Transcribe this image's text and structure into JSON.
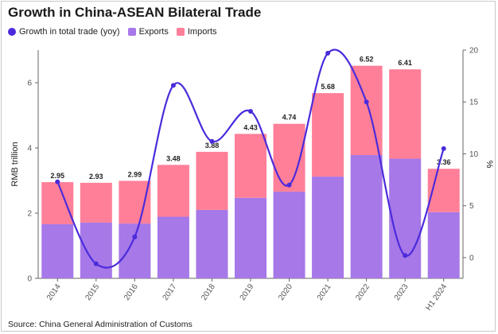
{
  "title": "Growth in China-ASEAN Bilateral Trade",
  "source": "Source: China General Administration of Customs",
  "colors": {
    "growth": "#4B2BDB",
    "exports": "#A678E8",
    "imports": "#FF7F98"
  },
  "chart_data": {
    "type": "bar",
    "stacked": true,
    "categories": [
      "2014",
      "2015",
      "2016",
      "2017",
      "2018",
      "2019",
      "2020",
      "2021",
      "2022",
      "2023",
      "H1 2024"
    ],
    "series": [
      {
        "name": "Exports",
        "values": [
          1.66,
          1.71,
          1.68,
          1.89,
          2.1,
          2.47,
          2.66,
          3.12,
          3.78,
          3.67,
          2.03
        ]
      },
      {
        "name": "Imports",
        "values": [
          1.29,
          1.22,
          1.31,
          1.59,
          1.78,
          1.96,
          2.08,
          2.56,
          2.74,
          2.74,
          1.33
        ]
      },
      {
        "name": "Growth in total trade (yoy)",
        "axis": "right",
        "type": "line",
        "values": [
          7.3,
          -0.6,
          2.0,
          16.6,
          11.2,
          14.1,
          7.0,
          19.7,
          15.0,
          0.2,
          10.5
        ]
      }
    ],
    "totals": [
      "2.95",
      "2.93",
      "2.99",
      "3.48",
      "3.88",
      "4.43",
      "4.74",
      "5.68",
      "6.52",
      "6.41",
      "3.36"
    ],
    "ylabel": "RMB trillion",
    "y2label": "%",
    "ylim": [
      0,
      7
    ],
    "y2lim": [
      -2,
      20
    ],
    "yticks": [
      "0",
      "2",
      "4",
      "6"
    ],
    "y2ticks": [
      "0",
      "5",
      "10",
      "15",
      "20"
    ],
    "legend": [
      "Growth in total trade (yoy)",
      "Exports",
      "Imports"
    ],
    "legend_position": "top-left",
    "grid": false
  }
}
